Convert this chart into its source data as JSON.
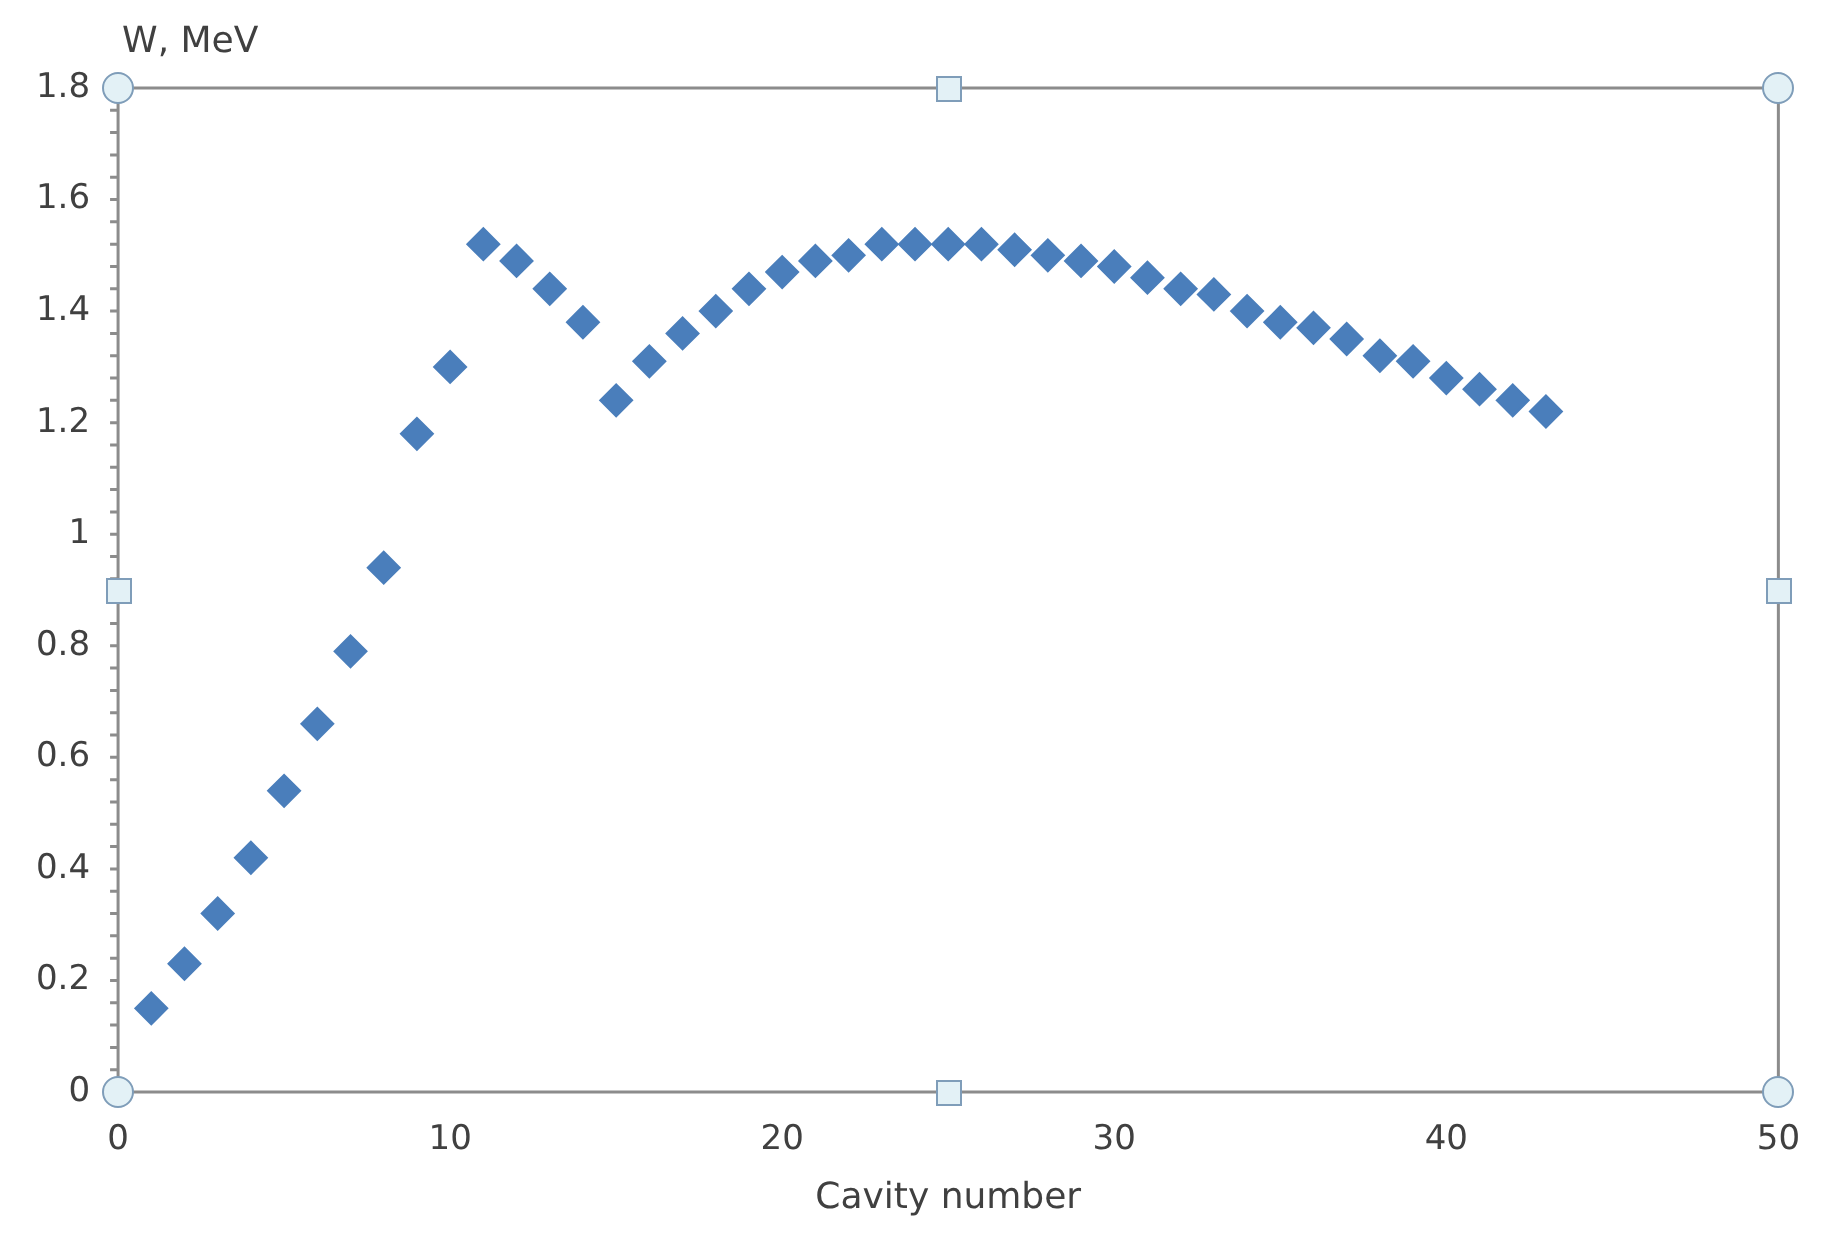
{
  "chart_data": {
    "type": "scatter",
    "ylabel": "W, MeV",
    "xlabel": "Cavity number",
    "x": [
      1,
      2,
      3,
      4,
      5,
      6,
      7,
      8,
      9,
      10,
      11,
      12,
      13,
      14,
      15,
      16,
      17,
      18,
      19,
      20,
      21,
      22,
      23,
      24,
      25,
      26,
      27,
      28,
      29,
      30,
      31,
      32,
      33,
      34,
      35,
      36,
      37,
      38,
      39,
      40,
      41,
      42,
      43
    ],
    "series": [
      {
        "color": "#4a7ebb",
        "values": [
          0.15,
          0.23,
          0.32,
          0.42,
          0.54,
          0.66,
          0.79,
          0.94,
          1.18,
          1.3,
          1.52,
          1.49,
          1.44,
          1.38,
          1.24,
          1.31,
          1.36,
          1.4,
          1.44,
          1.47,
          1.49,
          1.5,
          1.52,
          1.52,
          1.52,
          1.52,
          1.51,
          1.5,
          1.49,
          1.48,
          1.46,
          1.44,
          1.43,
          1.4,
          1.38,
          1.37,
          1.35,
          1.32,
          1.31,
          1.28,
          1.26,
          1.24,
          1.22
        ]
      }
    ],
    "xlim": [
      0,
      50
    ],
    "xticks": [
      0,
      10,
      20,
      30,
      40,
      50
    ],
    "ylim": [
      0,
      1.8
    ],
    "yticks": [
      0,
      0.2,
      0.4,
      0.6,
      0.8,
      1,
      1.2,
      1.4,
      1.6,
      1.8
    ],
    "marker": "diamond",
    "grid": false,
    "legend": false
  }
}
